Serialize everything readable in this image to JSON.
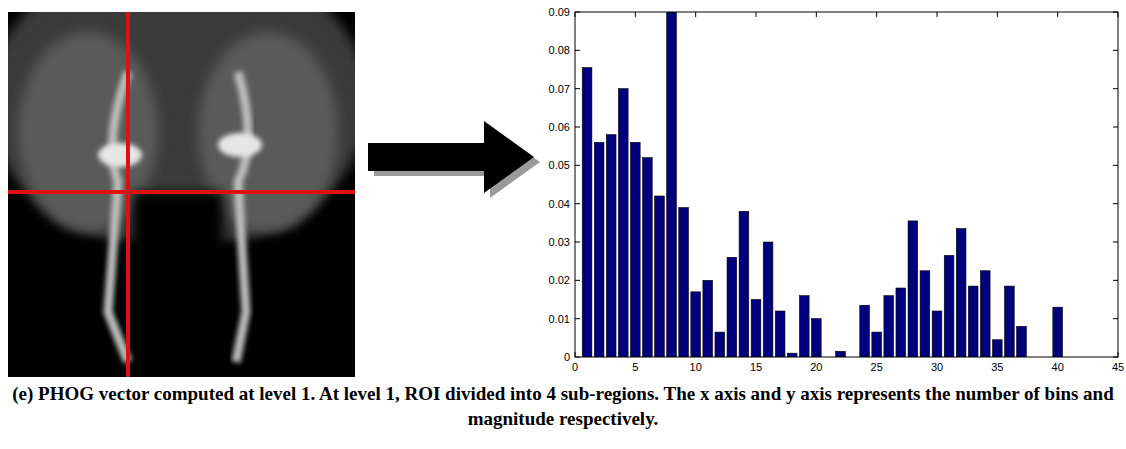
{
  "chart_data": {
    "type": "bar",
    "caption": "(e) PHOG vector computed at level 1. At level 1, ROI divided into 4 sub-regions. The x axis and y axis represents the number of bins and magnitude respectively.",
    "x": [
      1,
      2,
      3,
      4,
      5,
      6,
      7,
      8,
      9,
      10,
      11,
      12,
      13,
      14,
      15,
      16,
      17,
      18,
      19,
      20,
      21,
      22,
      23,
      24,
      25,
      26,
      27,
      28,
      29,
      30,
      31,
      32,
      33,
      34,
      35,
      36,
      37,
      38,
      39,
      40
    ],
    "values": [
      0.0755,
      0.056,
      0.058,
      0.07,
      0.056,
      0.052,
      0.042,
      0.09,
      0.039,
      0.017,
      0.02,
      0.0065,
      0.026,
      0.038,
      0.015,
      0.03,
      0.012,
      0.001,
      0.016,
      0.01,
      0,
      0.0015,
      0,
      0.0135,
      0.0065,
      0.016,
      0.018,
      0.0355,
      0.0225,
      0.012,
      0.0265,
      0.0335,
      0.0185,
      0.0225,
      0.0045,
      0.0185,
      0.008,
      0,
      0,
      0.013
    ],
    "color": "#00007f",
    "xlim": [
      0,
      45
    ],
    "xticks": [
      0,
      5,
      10,
      15,
      20,
      25,
      30,
      35,
      40,
      45
    ],
    "ylim": [
      0,
      0.09
    ],
    "yticks": [
      0,
      0.01,
      0.02,
      0.03,
      0.04,
      0.05,
      0.06,
      0.07,
      0.08,
      0.09
    ],
    "grid": false
  }
}
